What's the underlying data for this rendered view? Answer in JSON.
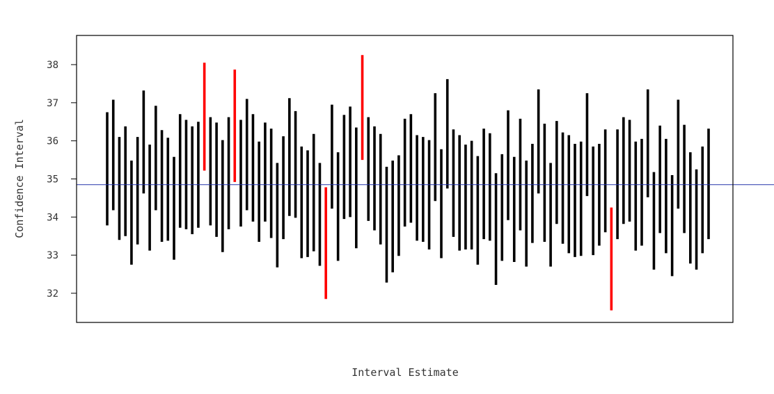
{
  "chart_data": {
    "type": "interval",
    "xlabel": "Interval Estimate",
    "ylabel": "Confidence Interval",
    "ylim": [
      31.2,
      38.75
    ],
    "yticks": [
      32,
      33,
      34,
      35,
      36,
      37,
      38
    ],
    "reference_line": 34.85,
    "colors": {
      "covers": "#000000",
      "misses": "#ff0000",
      "reference": "#2233aa",
      "frame": "#000000"
    },
    "series": [
      {
        "intervals": [
          {
            "lower": 33.78,
            "upper": 36.75
          },
          {
            "lower": 34.18,
            "upper": 37.08
          },
          {
            "lower": 33.4,
            "upper": 36.1
          },
          {
            "lower": 33.5,
            "upper": 36.38
          },
          {
            "lower": 32.75,
            "upper": 35.48
          },
          {
            "lower": 33.28,
            "upper": 36.1
          },
          {
            "lower": 34.62,
            "upper": 37.32
          },
          {
            "lower": 33.12,
            "upper": 35.9
          },
          {
            "lower": 34.18,
            "upper": 36.92
          },
          {
            "lower": 33.35,
            "upper": 36.28
          },
          {
            "lower": 33.38,
            "upper": 36.08
          },
          {
            "lower": 32.88,
            "upper": 35.58
          },
          {
            "lower": 33.72,
            "upper": 36.7
          },
          {
            "lower": 33.68,
            "upper": 36.55
          },
          {
            "lower": 33.55,
            "upper": 36.38
          },
          {
            "lower": 33.72,
            "upper": 36.5
          },
          {
            "lower": 35.22,
            "upper": 38.05
          },
          {
            "lower": 33.78,
            "upper": 36.62
          },
          {
            "lower": 33.48,
            "upper": 36.48
          },
          {
            "lower": 33.08,
            "upper": 36.02
          },
          {
            "lower": 33.68,
            "upper": 36.62
          },
          {
            "lower": 34.92,
            "upper": 37.87
          },
          {
            "lower": 33.75,
            "upper": 36.55
          },
          {
            "lower": 34.18,
            "upper": 37.1
          },
          {
            "lower": 33.88,
            "upper": 36.7
          },
          {
            "lower": 33.35,
            "upper": 35.98
          },
          {
            "lower": 33.88,
            "upper": 36.48
          },
          {
            "lower": 33.45,
            "upper": 36.32
          },
          {
            "lower": 32.68,
            "upper": 35.42
          },
          {
            "lower": 33.42,
            "upper": 36.12
          },
          {
            "lower": 34.03,
            "upper": 37.12
          },
          {
            "lower": 33.98,
            "upper": 36.78
          },
          {
            "lower": 32.92,
            "upper": 35.85
          },
          {
            "lower": 32.95,
            "upper": 35.75
          },
          {
            "lower": 33.1,
            "upper": 36.18
          },
          {
            "lower": 32.72,
            "upper": 35.42
          },
          {
            "lower": 31.85,
            "upper": 34.78
          },
          {
            "lower": 34.22,
            "upper": 36.95
          },
          {
            "lower": 32.85,
            "upper": 35.7
          },
          {
            "lower": 33.95,
            "upper": 36.68
          },
          {
            "lower": 34.0,
            "upper": 36.9
          },
          {
            "lower": 33.18,
            "upper": 36.35
          },
          {
            "lower": 35.5,
            "upper": 38.25
          },
          {
            "lower": 33.9,
            "upper": 36.62
          },
          {
            "lower": 33.65,
            "upper": 36.38
          },
          {
            "lower": 33.28,
            "upper": 36.18
          },
          {
            "lower": 32.28,
            "upper": 35.32
          },
          {
            "lower": 32.55,
            "upper": 35.48
          },
          {
            "lower": 32.98,
            "upper": 35.62
          },
          {
            "lower": 33.75,
            "upper": 36.58
          },
          {
            "lower": 33.85,
            "upper": 36.7
          },
          {
            "lower": 33.38,
            "upper": 36.15
          },
          {
            "lower": 33.35,
            "upper": 36.1
          },
          {
            "lower": 33.15,
            "upper": 36.02
          },
          {
            "lower": 34.42,
            "upper": 37.25
          },
          {
            "lower": 32.92,
            "upper": 35.78
          },
          {
            "lower": 34.75,
            "upper": 37.62
          },
          {
            "lower": 33.48,
            "upper": 36.3
          },
          {
            "lower": 33.12,
            "upper": 36.15
          },
          {
            "lower": 33.15,
            "upper": 35.9
          },
          {
            "lower": 33.15,
            "upper": 36.0
          },
          {
            "lower": 32.75,
            "upper": 35.6
          },
          {
            "lower": 33.42,
            "upper": 36.32
          },
          {
            "lower": 33.38,
            "upper": 36.2
          },
          {
            "lower": 32.22,
            "upper": 35.15
          },
          {
            "lower": 32.85,
            "upper": 35.65
          },
          {
            "lower": 33.92,
            "upper": 36.8
          },
          {
            "lower": 32.82,
            "upper": 35.58
          },
          {
            "lower": 33.65,
            "upper": 36.58
          },
          {
            "lower": 32.7,
            "upper": 35.48
          },
          {
            "lower": 33.32,
            "upper": 35.92
          },
          {
            "lower": 34.62,
            "upper": 37.35
          },
          {
            "lower": 33.35,
            "upper": 36.45
          },
          {
            "lower": 32.7,
            "upper": 35.42
          },
          {
            "lower": 33.82,
            "upper": 36.52
          },
          {
            "lower": 33.3,
            "upper": 36.22
          },
          {
            "lower": 33.05,
            "upper": 36.15
          },
          {
            "lower": 32.95,
            "upper": 35.92
          },
          {
            "lower": 32.98,
            "upper": 35.98
          },
          {
            "lower": 34.55,
            "upper": 37.25
          },
          {
            "lower": 33.0,
            "upper": 35.85
          },
          {
            "lower": 33.25,
            "upper": 35.92
          },
          {
            "lower": 33.6,
            "upper": 36.3
          },
          {
            "lower": 31.55,
            "upper": 34.25
          },
          {
            "lower": 33.42,
            "upper": 36.3
          },
          {
            "lower": 33.82,
            "upper": 36.62
          },
          {
            "lower": 33.88,
            "upper": 36.55
          },
          {
            "lower": 33.12,
            "upper": 35.98
          },
          {
            "lower": 33.25,
            "upper": 36.05
          },
          {
            "lower": 34.52,
            "upper": 37.35
          },
          {
            "lower": 32.62,
            "upper": 35.18
          },
          {
            "lower": 33.58,
            "upper": 36.4
          },
          {
            "lower": 33.05,
            "upper": 36.05
          },
          {
            "lower": 32.45,
            "upper": 35.1
          },
          {
            "lower": 34.22,
            "upper": 37.08
          },
          {
            "lower": 33.58,
            "upper": 36.42
          },
          {
            "lower": 32.78,
            "upper": 35.7
          },
          {
            "lower": 32.62,
            "upper": 35.25
          },
          {
            "lower": 33.05,
            "upper": 35.85
          },
          {
            "lower": 33.42,
            "upper": 36.32
          }
        ]
      }
    ]
  }
}
